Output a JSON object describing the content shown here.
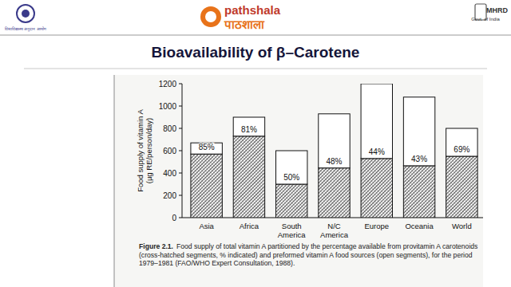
{
  "header": {
    "left_logo_text": "विश्वविद्यालय अनुदान आयोग",
    "logo_text": "pathshala",
    "logo_hindi": "पाठशाला",
    "ministry": "MHRD",
    "ministry_sub": "Govt. of India"
  },
  "chart_data": {
    "type": "bar",
    "stacked": true,
    "title": "Bioavailability of β–Carotene",
    "y_label": "Food supply of vitamin A\n(µg RE/person/day)",
    "categories": [
      "Asia",
      "Africa",
      "South\nAmerica",
      "N/C\nAmerica",
      "Europe",
      "Oceania",
      "World"
    ],
    "series": [
      {
        "color": "#333333",
        "values": [
          570,
          730,
          300,
          445,
          530,
          465,
          550
        ]
      },
      {
        "color": "#ffffff",
        "values": [
          100,
          170,
          300,
          485,
          670,
          615,
          250
        ]
      }
    ],
    "annotations": [
      "85%",
      "81%",
      "50%",
      "48%",
      "44%",
      "43%",
      "69%"
    ],
    "ylim": [
      0,
      1200
    ],
    "yticks": [
      0,
      200,
      400,
      600,
      800,
      1000,
      1200
    ],
    "grid": false,
    "caption": {
      "label": "Figure 2.1.",
      "text": "Food supply of total vitamin A partitioned by the percentage available from provitamin A carotenoids (cross-hatched segments, % indicated) and preformed vitamin A food sources (open segments), for the period 1979–1981 (FAO/WHO Expert Consultation, 1988)."
    }
  }
}
